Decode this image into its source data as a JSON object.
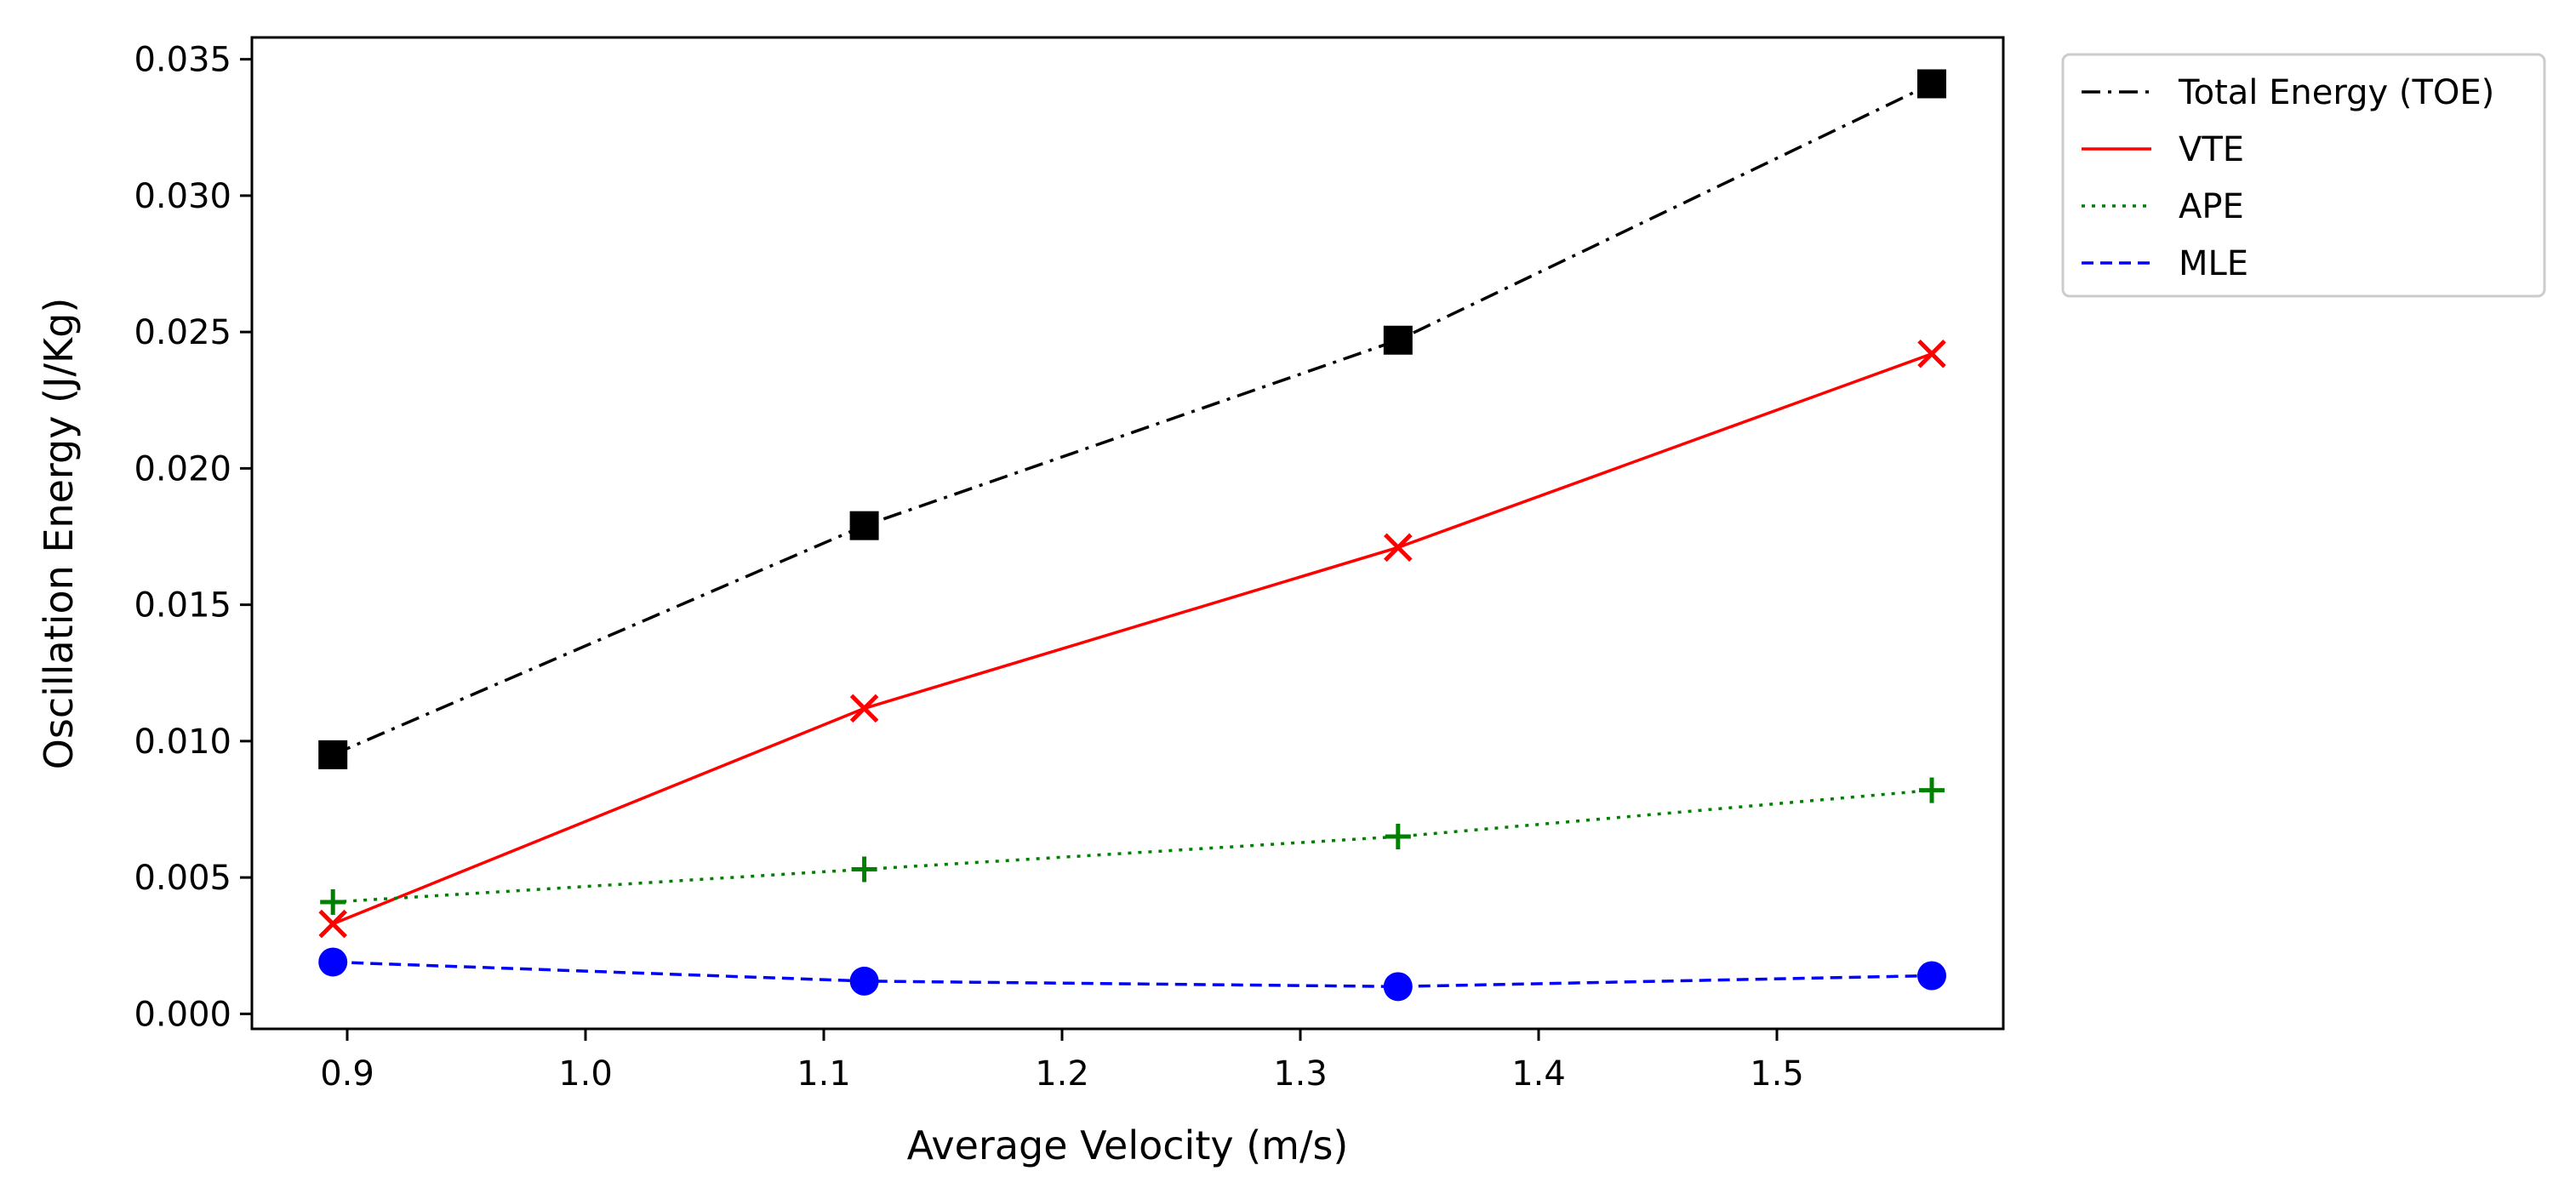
{
  "chart_data": {
    "type": "line",
    "title": "",
    "xlabel": "Average Velocity (m/s)",
    "ylabel": "Oscillation Energy (J/Kg)",
    "xlim": [
      0.86,
      1.595
    ],
    "ylim": [
      -0.00055,
      0.0358
    ],
    "x_ticks": [
      "0.9",
      "1.0",
      "1.1",
      "1.2",
      "1.3",
      "1.4",
      "1.5"
    ],
    "x_tick_values": [
      0.9,
      1.0,
      1.1,
      1.2,
      1.3,
      1.4,
      1.5
    ],
    "y_ticks": [
      "0.000",
      "0.005",
      "0.010",
      "0.015",
      "0.020",
      "0.025",
      "0.030",
      "0.035"
    ],
    "y_tick_values": [
      0.0,
      0.005,
      0.01,
      0.015,
      0.02,
      0.025,
      0.03,
      0.035
    ],
    "x": [
      0.894,
      1.117,
      1.341,
      1.565
    ],
    "grid": false,
    "legend_position": "outside-top-right",
    "series": [
      {
        "name": "Total Energy (TOE)",
        "values": [
          0.0095,
          0.0179,
          0.0247,
          0.0341
        ],
        "color": "#000000",
        "line_style": "dashdot",
        "marker": "square"
      },
      {
        "name": "VTE",
        "values": [
          0.0033,
          0.0112,
          0.0171,
          0.0242
        ],
        "color": "#ff0000",
        "line_style": "solid",
        "marker": "x"
      },
      {
        "name": "APE",
        "values": [
          0.0041,
          0.0053,
          0.0065,
          0.0082
        ],
        "color": "#008000",
        "line_style": "dotted",
        "marker": "plus"
      },
      {
        "name": "MLE",
        "values": [
          0.0019,
          0.0012,
          0.001,
          0.0014
        ],
        "color": "#0000ff",
        "line_style": "dashed",
        "marker": "circle"
      }
    ]
  }
}
